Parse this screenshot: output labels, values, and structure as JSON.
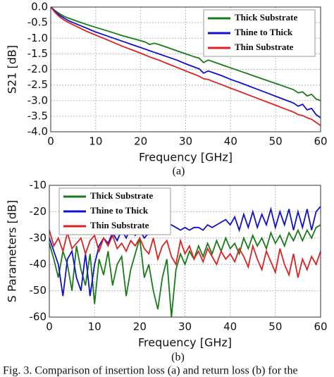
{
  "chart_data": [
    {
      "type": "line",
      "caption": "(a)",
      "xlabel": "Frequency [GHz]",
      "ylabel": "S21 [dB]",
      "x": [
        0,
        1,
        2,
        3,
        4,
        6,
        8,
        10,
        12,
        14,
        16,
        18,
        20,
        21,
        22,
        23,
        24,
        26,
        28,
        30,
        32,
        33,
        34,
        35,
        36,
        38,
        40,
        42,
        44,
        46,
        48,
        50,
        52,
        54,
        55,
        56,
        57,
        58,
        59,
        60
      ],
      "series": [
        {
          "name": "Thick Substrate",
          "color": "#1a7a1a",
          "values": [
            0,
            -0.12,
            -0.22,
            -0.3,
            -0.36,
            -0.46,
            -0.56,
            -0.65,
            -0.74,
            -0.83,
            -0.92,
            -1.0,
            -1.08,
            -1.12,
            -1.2,
            -1.16,
            -1.2,
            -1.3,
            -1.4,
            -1.5,
            -1.6,
            -1.64,
            -1.78,
            -1.7,
            -1.75,
            -1.85,
            -1.95,
            -2.05,
            -2.15,
            -2.25,
            -2.35,
            -2.45,
            -2.55,
            -2.65,
            -2.75,
            -2.72,
            -2.85,
            -2.8,
            -2.95,
            -3.0
          ]
        },
        {
          "name": "Thine to Thick",
          "color": "#1010cc",
          "values": [
            0,
            -0.15,
            -0.27,
            -0.36,
            -0.44,
            -0.56,
            -0.68,
            -0.8,
            -0.9,
            -1.0,
            -1.1,
            -1.2,
            -1.3,
            -1.35,
            -1.4,
            -1.45,
            -1.5,
            -1.6,
            -1.7,
            -1.82,
            -1.93,
            -1.98,
            -2.12,
            -2.05,
            -2.1,
            -2.2,
            -2.32,
            -2.42,
            -2.53,
            -2.64,
            -2.75,
            -2.86,
            -2.97,
            -3.08,
            -3.18,
            -3.12,
            -3.3,
            -3.25,
            -3.45,
            -3.55
          ]
        },
        {
          "name": "Thin Substrate",
          "color": "#dd2222",
          "values": [
            0,
            -0.18,
            -0.32,
            -0.42,
            -0.5,
            -0.64,
            -0.78,
            -0.9,
            -1.02,
            -1.14,
            -1.26,
            -1.37,
            -1.48,
            -1.54,
            -1.6,
            -1.65,
            -1.7,
            -1.82,
            -1.93,
            -2.05,
            -2.16,
            -2.22,
            -2.3,
            -2.32,
            -2.38,
            -2.49,
            -2.6,
            -2.71,
            -2.82,
            -2.93,
            -3.04,
            -3.15,
            -3.26,
            -3.37,
            -3.45,
            -3.48,
            -3.55,
            -3.6,
            -3.7,
            -3.8
          ]
        }
      ],
      "xlim": [
        0,
        60
      ],
      "xticks": [
        0,
        10,
        20,
        30,
        40,
        50,
        60
      ],
      "ylim": [
        -4,
        0
      ],
      "yticks": [
        {
          "value": 0,
          "label": "0.0"
        },
        -0.5,
        {
          "value": -1,
          "label": "-1.0"
        },
        -1.5,
        {
          "value": -2,
          "label": "-2.0"
        },
        -2.5,
        {
          "value": -3,
          "label": "-3.0"
        },
        -3.5,
        {
          "value": -4,
          "label": "-4.0"
        }
      ],
      "grid": true,
      "legend": "upper right"
    },
    {
      "type": "line",
      "caption": "(b)",
      "xlabel": "Frequency [GHz]",
      "ylabel": "S Parameters [dB]",
      "x": [
        0,
        1,
        2,
        3,
        4,
        5,
        6,
        7,
        8,
        9,
        10,
        11,
        12,
        13,
        14,
        15,
        16,
        17,
        18,
        19,
        20,
        21,
        22,
        23,
        24,
        25,
        26,
        27,
        28,
        29,
        30,
        31,
        32,
        33,
        34,
        35,
        36,
        37,
        38,
        39,
        40,
        41,
        42,
        43,
        44,
        45,
        46,
        47,
        48,
        49,
        50,
        51,
        52,
        53,
        54,
        55,
        56,
        57,
        58,
        59,
        60
      ],
      "series": [
        {
          "name": "Thick Substrate",
          "color": "#1a7a1a",
          "values": [
            -32,
            -38,
            -45,
            -35,
            -40,
            -50,
            -33,
            -42,
            -48,
            -36,
            -55,
            -38,
            -44,
            -35,
            -48,
            -40,
            -37,
            -52,
            -42,
            -36,
            -30,
            -45,
            -40,
            -50,
            -57,
            -45,
            -38,
            -60,
            -42,
            -36,
            -40,
            -35,
            -38,
            -33,
            -37,
            -32,
            -36,
            -31,
            -35,
            -30,
            -34,
            -32,
            -36,
            -30,
            -34,
            -29,
            -33,
            -30,
            -34,
            -28,
            -32,
            -29,
            -33,
            -28,
            -31,
            -27,
            -31,
            -27,
            -30,
            -26,
            -25
          ]
        },
        {
          "name": "Thine to Thick",
          "color": "#1010cc",
          "values": [
            -30,
            -35,
            -40,
            -52,
            -38,
            -35,
            -45,
            -50,
            -36,
            -52,
            -40,
            -33,
            -30,
            -32,
            -28,
            -31,
            -27,
            -30,
            -26,
            -29,
            -27,
            -30,
            -28,
            -26,
            -23,
            -24,
            -25,
            -25,
            -26,
            -27,
            -26,
            -27,
            -26,
            -26,
            -27,
            -25,
            -26,
            -25,
            -24,
            -23,
            -25,
            -22,
            -27,
            -21,
            -26,
            -20,
            -26,
            -21,
            -25,
            -19,
            -26,
            -20,
            -25,
            -19,
            -27,
            -20,
            -26,
            -19,
            -27,
            -20,
            -18
          ]
        },
        {
          "name": "Thin Substrate",
          "color": "#dd2222",
          "values": [
            -27,
            -33,
            -30,
            -35,
            -28,
            -34,
            -32,
            -30,
            -36,
            -31,
            -29,
            -35,
            -30,
            -33,
            -29,
            -34,
            -32,
            -35,
            -31,
            -33,
            -30,
            -34,
            -36,
            -30,
            -38,
            -33,
            -31,
            -37,
            -40,
            -31,
            -36,
            -33,
            -38,
            -35,
            -39,
            -34,
            -37,
            -40,
            -35,
            -38,
            -36,
            -39,
            -34,
            -37,
            -41,
            -33,
            -38,
            -42,
            -35,
            -39,
            -43,
            -34,
            -40,
            -44,
            -36,
            -45,
            -38,
            -42,
            -37,
            -40,
            -35
          ]
        }
      ],
      "xlim": [
        0,
        60
      ],
      "xticks": [
        0,
        10,
        20,
        30,
        40,
        50,
        60
      ],
      "ylim": [
        -60,
        -10
      ],
      "yticks": [
        -10,
        -20,
        -30,
        -40,
        -50,
        -60
      ],
      "grid": true,
      "legend": "upper left"
    }
  ],
  "figure_caption": "Fig. 3. Comparison of insertion loss (a) and return loss (b) for the"
}
